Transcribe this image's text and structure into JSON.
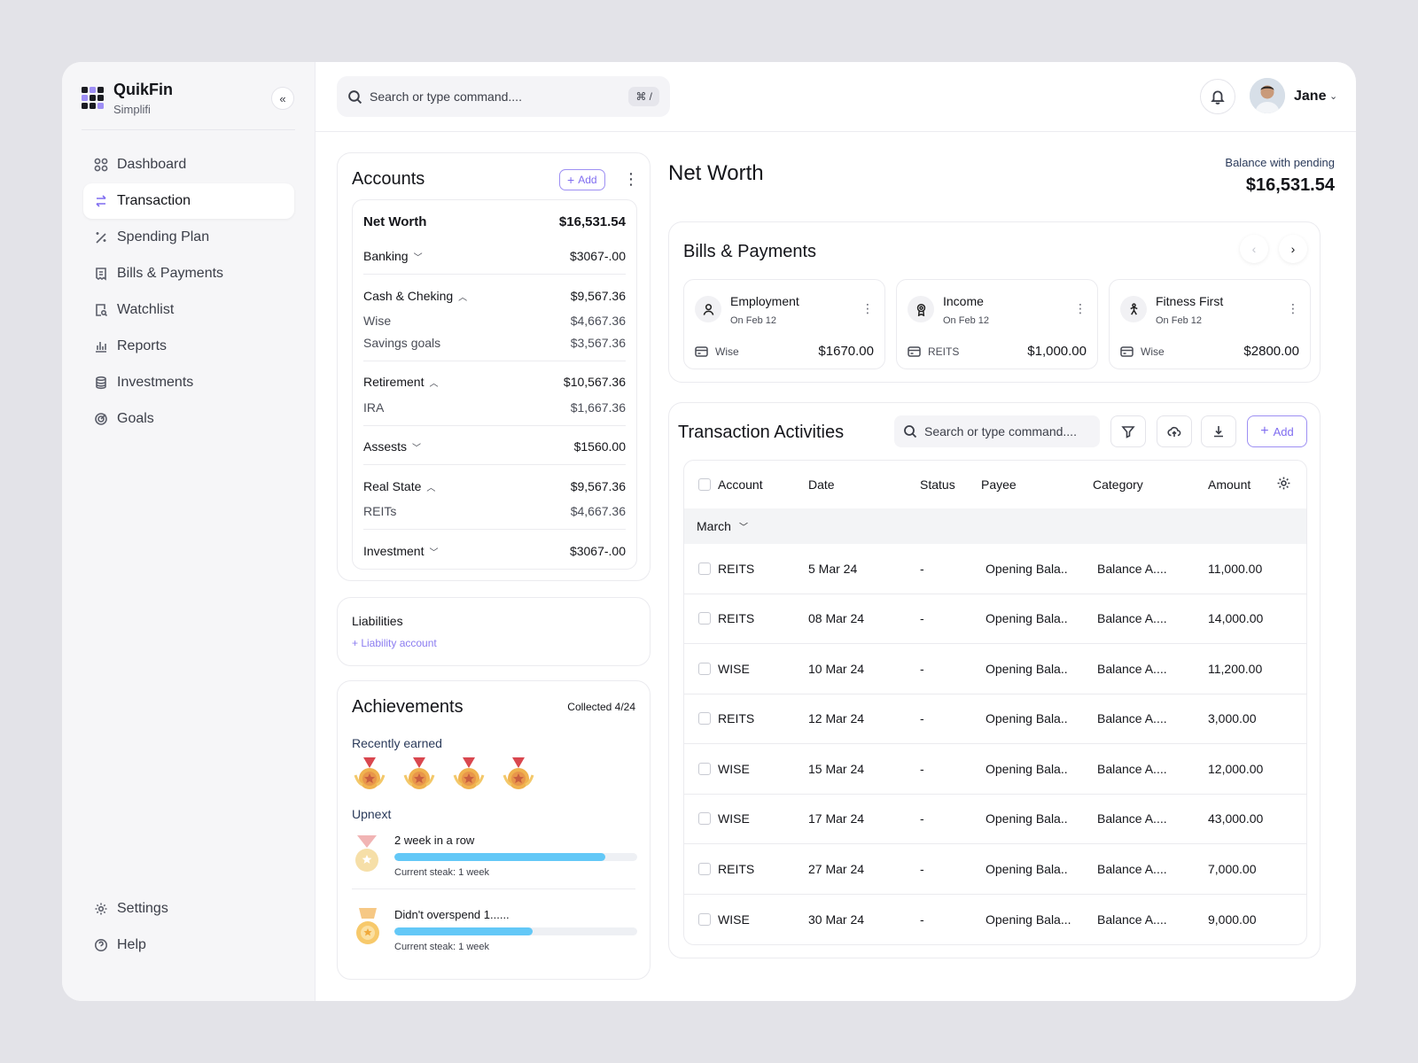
{
  "brand": {
    "name": "QuikFin",
    "sub": "Simplifi"
  },
  "nav": {
    "items": [
      {
        "label": "Dashboard",
        "icon": "grid-icon"
      },
      {
        "label": "Transaction",
        "icon": "arrows-icon",
        "active": true
      },
      {
        "label": "Spending Plan",
        "icon": "wand-icon"
      },
      {
        "label": "Bills & Payments",
        "icon": "receipt-icon"
      },
      {
        "label": "Watchlist",
        "icon": "doc-search-icon"
      },
      {
        "label": "Reports",
        "icon": "bar-chart-icon"
      },
      {
        "label": "Investments",
        "icon": "coins-icon"
      },
      {
        "label": "Goals",
        "icon": "target-icon"
      }
    ],
    "bottom": [
      {
        "label": "Settings",
        "icon": "gear-icon"
      },
      {
        "label": "Help",
        "icon": "help-icon"
      }
    ]
  },
  "topbar": {
    "search_placeholder": "Search or type command....",
    "shortcut": "⌘ /",
    "user": "Jane"
  },
  "accounts": {
    "title": "Accounts",
    "add": "Add",
    "net_worth_label": "Net Worth",
    "net_worth": "$16,531.54",
    "groups": [
      {
        "label": "Banking",
        "amount": "$3067-.00",
        "expanded": false,
        "children": []
      },
      {
        "label": "Cash & Cheking",
        "amount": "$9,567.36",
        "expanded": true,
        "children": [
          {
            "label": "Wise",
            "amount": "$4,667.36"
          },
          {
            "label": "Savings goals",
            "amount": "$3,567.36"
          }
        ]
      },
      {
        "label": "Retirement",
        "amount": "$10,567.36",
        "expanded": true,
        "children": [
          {
            "label": "IRA",
            "amount": "$1,667.36"
          }
        ]
      },
      {
        "label": "Assests",
        "amount": "$1560.00",
        "expanded": false,
        "children": []
      },
      {
        "label": "Real State",
        "amount": "$9,567.36",
        "expanded": true,
        "children": [
          {
            "label": "REITs",
            "amount": "$4,667.36"
          }
        ]
      },
      {
        "label": "Investment",
        "amount": "$3067-.00",
        "expanded": false,
        "children": []
      }
    ]
  },
  "liabilities": {
    "title": "Liabilities",
    "link": "+ Liability account"
  },
  "achievements": {
    "title": "Achievements",
    "collected": "Collected 4/24",
    "recent_label": "Recently earned",
    "upnext_label": "Upnext",
    "goals": [
      {
        "title": "2 week in a row",
        "progress": 0.87,
        "sub": "Current steak: 1 week"
      },
      {
        "title": "Didn't overspend 1......",
        "progress": 0.57,
        "sub": "Current steak: 1 week"
      }
    ]
  },
  "net_worth": {
    "title": "Net Worth",
    "balance_label": "Balance with pending",
    "balance": "$16,531.54"
  },
  "bills": {
    "title": "Bills & Payments",
    "items": [
      {
        "name": "Employment",
        "date": "On Feb 12",
        "source": "Wise",
        "amount": "$1670.00",
        "icon": "user-icon"
      },
      {
        "name": "Income",
        "date": "On Feb 12",
        "source": "REITS",
        "amount": "$1,000.00",
        "icon": "medal-icon"
      },
      {
        "name": "Fitness First",
        "date": "On Feb 12",
        "source": "Wise",
        "amount": "$2800.00",
        "icon": "person-run-icon"
      }
    ]
  },
  "transactions": {
    "title": "Transaction Activities",
    "search_placeholder": "Search or type command....",
    "add": "Add",
    "columns": [
      "Account",
      "Date",
      "Status",
      "Payee",
      "Category",
      "Amount"
    ],
    "group": "March",
    "rows": [
      {
        "account": "REITS",
        "date": "5 Mar 24",
        "status": "-",
        "payee": "Opening Bala..",
        "category": "Balance A....",
        "amount": "11,000.00"
      },
      {
        "account": "REITS",
        "date": "08 Mar 24",
        "status": "-",
        "payee": "Opening Bala..",
        "category": "Balance A....",
        "amount": "14,000.00"
      },
      {
        "account": "WISE",
        "date": "10 Mar 24",
        "status": "-",
        "payee": "Opening Bala..",
        "category": "Balance A....",
        "amount": "11,200.00"
      },
      {
        "account": "REITS",
        "date": "12 Mar 24",
        "status": "-",
        "payee": "Opening Bala..",
        "category": "Balance A....",
        "amount": "3,000.00"
      },
      {
        "account": "WISE",
        "date": "15 Mar 24",
        "status": "-",
        "payee": "Opening Bala..",
        "category": "Balance A....",
        "amount": "12,000.00"
      },
      {
        "account": "WISE",
        "date": "17 Mar 24",
        "status": "-",
        "payee": "Opening Bala..",
        "category": "Balance A....",
        "amount": "43,000.00"
      },
      {
        "account": "REITS",
        "date": "27 Mar 24",
        "status": "-",
        "payee": "Opening Bala..",
        "category": "Balance A....",
        "amount": "7,000.00"
      },
      {
        "account": "WISE",
        "date": "30 Mar 24",
        "status": "-",
        "payee": "Opening Bala...",
        "category": "Balance A....",
        "amount": "9,000.00"
      }
    ]
  },
  "colors": {
    "accent": "#7f6cf0",
    "progress": "#63c8f7"
  }
}
